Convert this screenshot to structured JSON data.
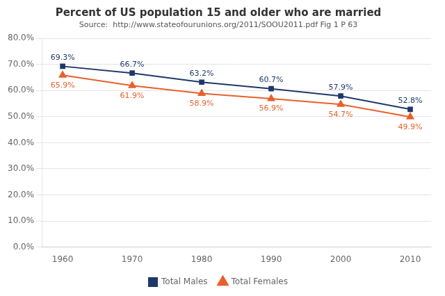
{
  "chart_data": {
    "type": "line",
    "title": "Percent of US population 15 and older who are married",
    "subtitle": "Source:  http://www.stateofourunions.org/2011/SOOU2011.pdf Fig 1 P 63",
    "x": [
      1960,
      1970,
      1980,
      1990,
      2000,
      2010
    ],
    "series": [
      {
        "name": "Total Males",
        "color": "#1F3869",
        "marker": "square",
        "values": [
          0.693,
          0.667,
          0.632,
          0.607,
          0.579,
          0.528
        ],
        "value_labels": [
          "69.3%",
          "66.7%",
          "63.2%",
          "60.7%",
          "57.9%",
          "52.8%"
        ]
      },
      {
        "name": "Total Females",
        "color": "#E8602C",
        "marker": "triangle",
        "values": [
          0.659,
          0.619,
          0.589,
          0.569,
          0.547,
          0.499
        ],
        "value_labels": [
          "65.9%",
          "61.9%",
          "58.9%",
          "56.9%",
          "54.7%",
          "49.9%"
        ]
      }
    ],
    "xlim": [
      1957,
      2013
    ],
    "xticks": [
      1960,
      1970,
      1980,
      1990,
      2000,
      2010
    ],
    "ylim": [
      0.0,
      0.8
    ],
    "yticks": [
      {
        "value": 0.0,
        "label": "0.0%"
      },
      {
        "value": 0.1,
        "label": "10.0%"
      },
      {
        "value": 0.2,
        "label": "20.0%"
      },
      {
        "value": 0.3,
        "label": "30.0%"
      },
      {
        "value": 0.4,
        "label": "40.0%"
      },
      {
        "value": 0.5,
        "label": "50.0%"
      },
      {
        "value": 0.6,
        "label": "60.0%"
      },
      {
        "value": 0.7,
        "label": "70.0%"
      },
      {
        "value": 0.8,
        "label": "80.0%"
      }
    ],
    "grid": "y",
    "legend": "bottom",
    "data_labels": true
  }
}
